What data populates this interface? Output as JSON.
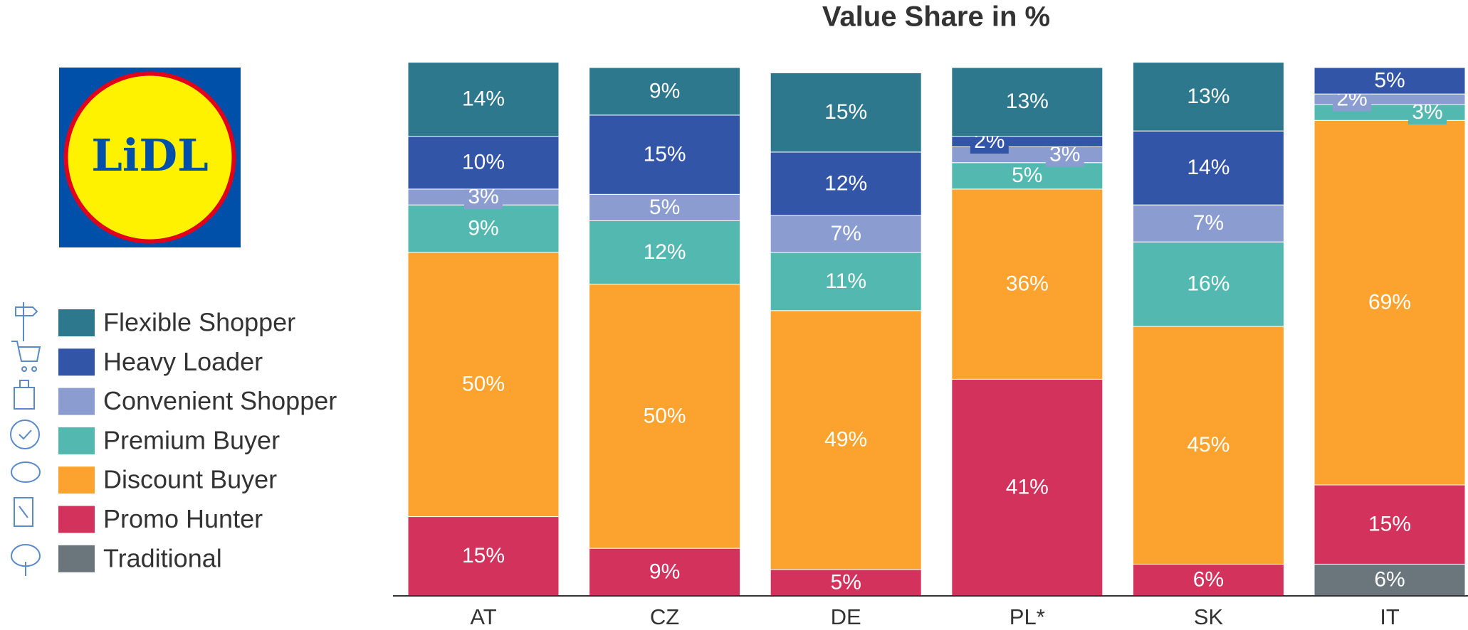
{
  "logo_text": "LiDL",
  "chart_data": {
    "type": "stacked_bar",
    "title": "Value Share in %",
    "categories": [
      "AT",
      "CZ",
      "DE",
      "PL*",
      "SK",
      "IT"
    ],
    "ylim": [
      0,
      100
    ],
    "series": [
      {
        "name": "Flexible Shopper",
        "color": "#2e788d",
        "values": [
          14,
          9,
          15,
          13,
          13,
          null
        ],
        "value_labels": [
          "14%",
          "9%",
          "15%",
          "13%",
          "13%",
          null
        ]
      },
      {
        "name": "Heavy Loader",
        "color": "#3355a8",
        "values": [
          10,
          15,
          12,
          2,
          14,
          5
        ],
        "value_labels": [
          "10%",
          "15%",
          "12%",
          "2%",
          "14%",
          "5%"
        ]
      },
      {
        "name": "Convenient Shopper",
        "color": "#8b9dd0",
        "values": [
          3,
          5,
          7,
          3,
          7,
          2
        ],
        "value_labels": [
          "3%",
          "5%",
          "7%",
          "3%",
          "7%",
          "2%"
        ]
      },
      {
        "name": "Premium Buyer",
        "color": "#53b8af",
        "values": [
          9,
          12,
          11,
          5,
          16,
          3
        ],
        "value_labels": [
          "9%",
          "12%",
          "11%",
          "5%",
          "16%",
          "3%"
        ]
      },
      {
        "name": "Discount Buyer",
        "color": "#fba32e",
        "values": [
          50,
          50,
          49,
          36,
          45,
          69
        ],
        "value_labels": [
          "50%",
          "50%",
          "49%",
          "36%",
          "45%",
          "69%"
        ]
      },
      {
        "name": "Promo Hunter",
        "color": "#d3325d",
        "values": [
          15,
          9,
          5,
          41,
          6,
          15
        ],
        "value_labels": [
          "15%",
          "9%",
          "5%",
          "41%",
          "6%",
          "15%"
        ]
      },
      {
        "name": "Traditional",
        "color": "#6b757c",
        "values": [
          null,
          null,
          null,
          null,
          null,
          6
        ],
        "value_labels": [
          null,
          null,
          null,
          null,
          null,
          "6%"
        ]
      }
    ]
  }
}
